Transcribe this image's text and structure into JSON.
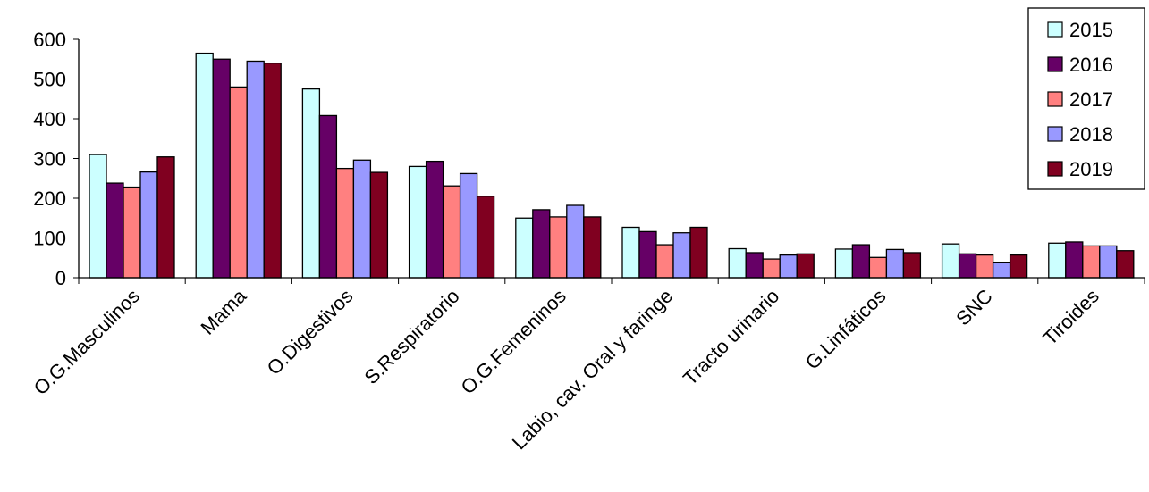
{
  "chart_data": {
    "type": "bar",
    "title": "",
    "xlabel": "",
    "ylabel": "",
    "ylim": [
      0,
      600
    ],
    "yticks": [
      0,
      100,
      200,
      300,
      400,
      500,
      600
    ],
    "grid": false,
    "legend_position": "top-right",
    "categories": [
      "O.G.Masculinos",
      "Mama",
      "O.Digestivos",
      "S.Respiratorio",
      "O.G.Femeninos",
      "Labio, cav. Oral y faringe",
      "Tracto urinario",
      "G.Linfáticos",
      "SNC",
      "Tiroides"
    ],
    "series": [
      {
        "name": "2015",
        "color": "#ccffff",
        "values": [
          310,
          565,
          475,
          280,
          150,
          127,
          73,
          72,
          85,
          87
        ]
      },
      {
        "name": "2016",
        "color": "#660066",
        "values": [
          238,
          550,
          408,
          293,
          171,
          116,
          63,
          83,
          60,
          90
        ]
      },
      {
        "name": "2017",
        "color": "#ff8080",
        "values": [
          228,
          480,
          275,
          231,
          153,
          83,
          47,
          51,
          57,
          80
        ]
      },
      {
        "name": "2018",
        "color": "#9999ff",
        "values": [
          266,
          545,
          296,
          262,
          182,
          113,
          57,
          71,
          39,
          80
        ]
      },
      {
        "name": "2019",
        "color": "#800020",
        "values": [
          304,
          540,
          265,
          205,
          153,
          127,
          60,
          63,
          57,
          68
        ]
      }
    ]
  }
}
